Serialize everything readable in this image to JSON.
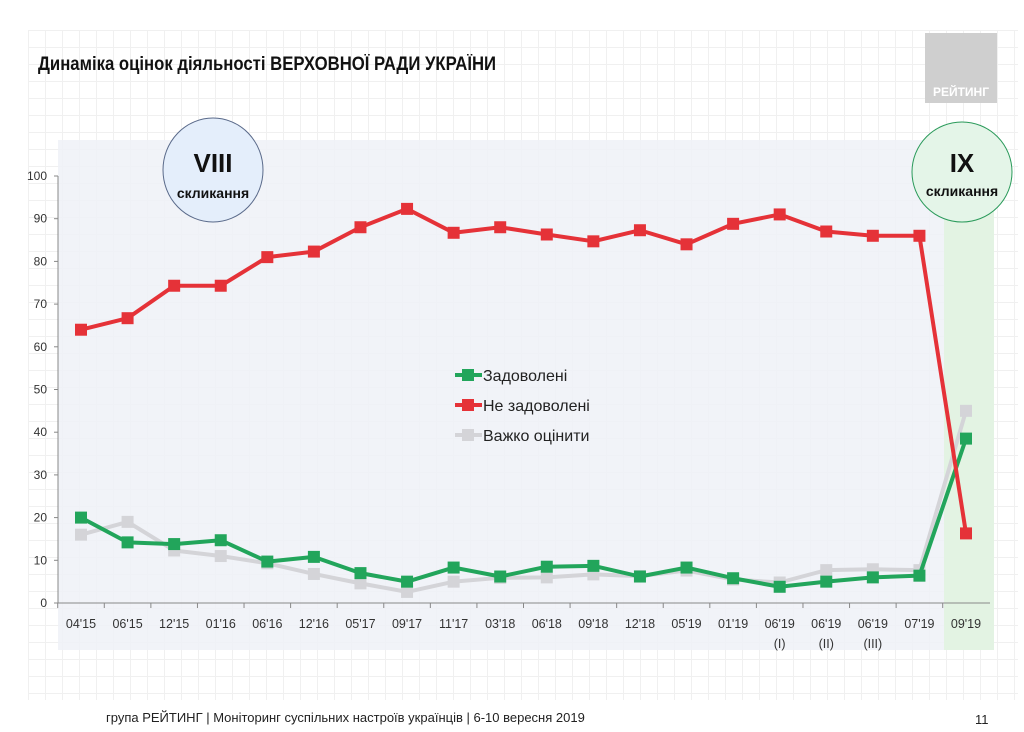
{
  "header": {
    "title": "Динаміка оцінок діяльності ВЕРХОВНОЇ РАДИ УКРАЇНИ",
    "logo_text": "РЕЙТИНГ"
  },
  "annotations": {
    "viii": {
      "roman": "VIII",
      "label": "скликання"
    },
    "ix": {
      "roman": "IX",
      "label": "скликання"
    }
  },
  "footer": {
    "text": "група РЕЙТИНГ | Моніторинг суспільних настроїв українців | 6-10 вересня 2019",
    "page": "11"
  },
  "chart_data": {
    "type": "line",
    "title": "Динаміка оцінок діяльності ВЕРХОВНОЇ РАДИ УКРАЇНИ",
    "categories": [
      "04'15",
      "06'15",
      "12'15",
      "01'16",
      "06'16",
      "12'16",
      "05'17",
      "09'17",
      "11'17",
      "03'18",
      "06'18",
      "09'18",
      "12'18",
      "05'19",
      "01'19",
      "06'19\n(I)",
      "06'19\n(II)",
      "06'19\n(III)",
      "07'19",
      "09'19"
    ],
    "ylim": [
      0,
      100
    ],
    "yticks": [
      0,
      10,
      20,
      30,
      40,
      50,
      60,
      70,
      80,
      90,
      100
    ],
    "legend_position": "center",
    "grid": false,
    "series": [
      {
        "name": "Задоволені",
        "color": "#22a55b",
        "values": [
          20,
          14.2,
          13.8,
          14.7,
          9.7,
          10.8,
          7,
          5,
          8.3,
          6.2,
          8.5,
          8.7,
          6.2,
          8.3,
          5.8,
          3.8,
          5,
          6,
          6.4,
          38.5
        ]
      },
      {
        "name": "Не задоволені",
        "color": "#e53238",
        "values": [
          64,
          66.7,
          74.3,
          74.3,
          81,
          82.3,
          88,
          92.3,
          86.7,
          88,
          86.3,
          84.7,
          87.3,
          84,
          88.8,
          91,
          87,
          86,
          86,
          16.3
        ]
      },
      {
        "name": "Важко оцінити",
        "color": "#d4d4d8",
        "values": [
          16,
          19,
          12.3,
          11,
          9.3,
          6.8,
          4.6,
          2.6,
          5,
          5.9,
          6,
          6.7,
          6.3,
          7.6,
          5.5,
          4.8,
          7.7,
          7.9,
          7.7,
          45
        ]
      }
    ]
  }
}
